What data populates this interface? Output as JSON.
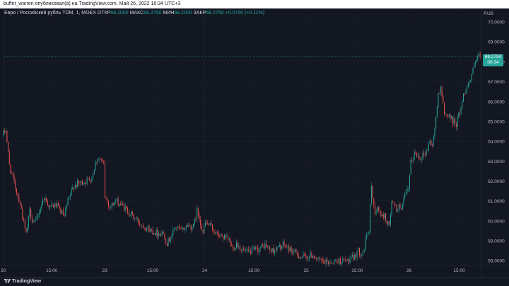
{
  "publisher_line": "buffet_warren опубликовал(а) на TradingView.com, Май 26, 2022 16:34 UTC+3",
  "legend": {
    "symbol": "Евро / Российский рубль TOM, 1, MOEX",
    "open_label": "ОТКР",
    "open_value": "68.2000",
    "high_label": "МАКС",
    "high_value": "68.2750",
    "low_label": "МИН",
    "low_value": "68.2000",
    "close_label": "ЗАКР",
    "close_value": "68.2750",
    "change": "+0.0750 (+0.11%)"
  },
  "currency": "RUB",
  "last_price": {
    "price": "68.2750",
    "countdown": "00:34"
  },
  "brand": {
    "logo_icon": "tradingview-logo-icon",
    "name": "TradingView"
  },
  "colors": {
    "background": "#131722",
    "up": "#26a69a",
    "down": "#ef5350",
    "grid": "#1f2330",
    "axis_text": "#b2b5be"
  },
  "chart_data": {
    "type": "candlestick",
    "ylim": [
      57.8,
      70.4
    ],
    "y_ticks": [
      58.0,
      59.0,
      60.0,
      61.0,
      62.0,
      63.0,
      64.0,
      65.0,
      66.0,
      67.0,
      68.0,
      69.0,
      70.0
    ],
    "y_tick_labels": [
      "58.0000",
      "59.0000",
      "60.0000",
      "61.0000",
      "62.0000",
      "63.0000",
      "64.0000",
      "65.0000",
      "66.0000",
      "67.0000",
      "68.0000",
      "69.0000",
      "70.0000"
    ],
    "x_ticks": [
      "20",
      "15:00",
      "23",
      "15:00",
      "24",
      "15:00",
      "25",
      "15:00",
      "26",
      "15:00"
    ],
    "x_tick_index": [
      0,
      40.5,
      84.8,
      124.9,
      168.5,
      209.7,
      253.4,
      296.2,
      339.5,
      381.5
    ],
    "x_count": 400,
    "path": [
      [
        0,
        64.3
      ],
      [
        3,
        64.6
      ],
      [
        6,
        62.8
      ],
      [
        10,
        61.9
      ],
      [
        15,
        60.9
      ],
      [
        18,
        59.9
      ],
      [
        20,
        59.3
      ],
      [
        23,
        60.5
      ],
      [
        25,
        60.1
      ],
      [
        28,
        59.9
      ],
      [
        32,
        60.7
      ],
      [
        35,
        61.2
      ],
      [
        40,
        60.7
      ],
      [
        45,
        60.8
      ],
      [
        50,
        60.4
      ],
      [
        52,
        60.2
      ],
      [
        55,
        61.0
      ],
      [
        57,
        61.3
      ],
      [
        60,
        61.8
      ],
      [
        65,
        61.9
      ],
      [
        70,
        62.0
      ],
      [
        75,
        62.2
      ],
      [
        78,
        62.9
      ],
      [
        80,
        63.2
      ],
      [
        83,
        63.0
      ],
      [
        85,
        62.8
      ],
      [
        86,
        61.2
      ],
      [
        88,
        61.0
      ],
      [
        90,
        60.7
      ],
      [
        95,
        61.0
      ],
      [
        100,
        60.8
      ],
      [
        105,
        60.5
      ],
      [
        110,
        60.2
      ],
      [
        115,
        59.9
      ],
      [
        120,
        59.7
      ],
      [
        125,
        59.5
      ],
      [
        130,
        59.4
      ],
      [
        135,
        59.4
      ],
      [
        138,
        58.9
      ],
      [
        140,
        59.1
      ],
      [
        145,
        59.7
      ],
      [
        150,
        59.5
      ],
      [
        155,
        59.8
      ],
      [
        160,
        59.7
      ],
      [
        163,
        60.5
      ],
      [
        165,
        60.2
      ],
      [
        168,
        59.4
      ],
      [
        170,
        59.9
      ],
      [
        175,
        59.7
      ],
      [
        180,
        59.3
      ],
      [
        185,
        59.2
      ],
      [
        190,
        59.0
      ],
      [
        193,
        58.6
      ],
      [
        196,
        58.9
      ],
      [
        200,
        58.6
      ],
      [
        205,
        58.4
      ],
      [
        210,
        58.5
      ],
      [
        215,
        58.6
      ],
      [
        220,
        58.8
      ],
      [
        225,
        58.5
      ],
      [
        230,
        58.6
      ],
      [
        235,
        58.8
      ],
      [
        240,
        58.6
      ],
      [
        245,
        58.4
      ],
      [
        250,
        58.2
      ],
      [
        255,
        58.2
      ],
      [
        260,
        58.3
      ],
      [
        265,
        58.0
      ],
      [
        270,
        57.9
      ],
      [
        280,
        58.0
      ],
      [
        290,
        58.0
      ],
      [
        295,
        58.2
      ],
      [
        297,
        58.5
      ],
      [
        300,
        58.4
      ],
      [
        303,
        58.6
      ],
      [
        305,
        59.3
      ],
      [
        307,
        59.5
      ],
      [
        309,
        61.9
      ],
      [
        310,
        61.1
      ],
      [
        312,
        60.5
      ],
      [
        315,
        60.6
      ],
      [
        318,
        60.2
      ],
      [
        320,
        60.3
      ],
      [
        322,
        59.9
      ],
      [
        324,
        59.8
      ],
      [
        326,
        60.9
      ],
      [
        330,
        60.6
      ],
      [
        335,
        60.8
      ],
      [
        338,
        61.4
      ],
      [
        340,
        61.6
      ],
      [
        342,
        62.9
      ],
      [
        345,
        63.4
      ],
      [
        350,
        63.2
      ],
      [
        355,
        63.5
      ],
      [
        358,
        64.0
      ],
      [
        360,
        63.8
      ],
      [
        363,
        65.1
      ],
      [
        365,
        66.4
      ],
      [
        367,
        66.8
      ],
      [
        370,
        65.3
      ],
      [
        373,
        65.4
      ],
      [
        376,
        65.1
      ],
      [
        380,
        64.9
      ],
      [
        383,
        65.5
      ],
      [
        386,
        66.3
      ],
      [
        389,
        66.8
      ],
      [
        392,
        67.1
      ],
      [
        395,
        67.8
      ],
      [
        398,
        68.2
      ],
      [
        399,
        68.275
      ]
    ]
  }
}
